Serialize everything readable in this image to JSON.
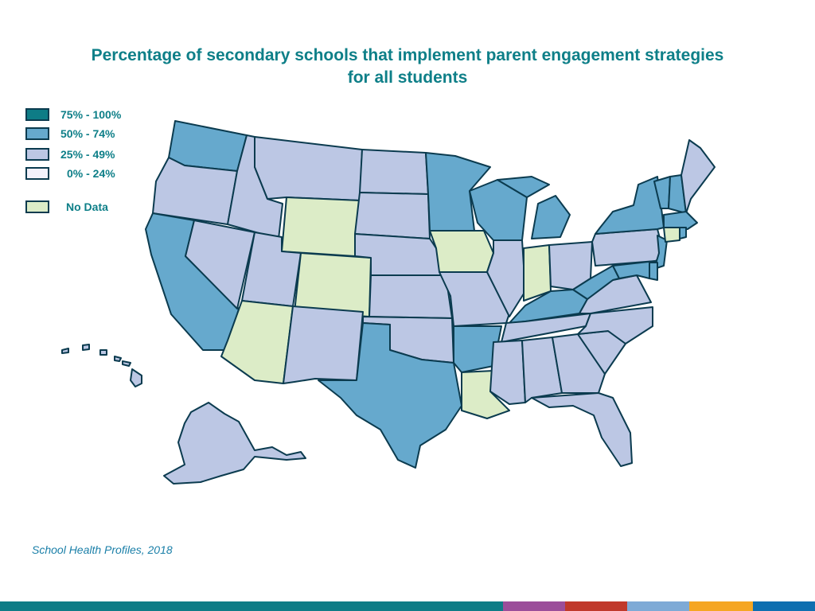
{
  "title": {
    "line1": "Percentage of secondary schools that implement parent engagement strategies",
    "line2": "for all students"
  },
  "legend": [
    {
      "label": "75% - 100%",
      "color": "#0e7c86"
    },
    {
      "label": "50% - 74%",
      "color": "#66a9cd"
    },
    {
      "label": "25% - 49%",
      "color": "#bcc7e4"
    },
    {
      "label": "0% - 24%",
      "color": "#f3f1fb"
    },
    {
      "label": "No Data",
      "color": "#dcecc7"
    }
  ],
  "source": "School Health Profiles, 2018",
  "colors": {
    "title": "#0e7f88",
    "border": "#0b3b4f",
    "source": "#1a7fa8"
  },
  "bottom_bar": [
    "#0e7c86",
    "#9b4e9a",
    "#c0392b",
    "#7eaad6",
    "#f5a623",
    "#0e6fb0"
  ],
  "chart_data": {
    "type": "choropleth",
    "categories": {
      "50% - 74%": [
        "WA",
        "CA",
        "MN",
        "WI",
        "MI",
        "NY",
        "VT",
        "NH",
        "MA",
        "RI",
        "NJ",
        "WV",
        "KY",
        "TX",
        "AR",
        "MD",
        "DE"
      ],
      "25% - 49%": [
        "OR",
        "ID",
        "MT",
        "NV",
        "UT",
        "NM",
        "ND",
        "SD",
        "NE",
        "KS",
        "OK",
        "MO",
        "IL",
        "OH",
        "PA",
        "VA",
        "NC",
        "SC",
        "GA",
        "FL",
        "AL",
        "MS",
        "TN",
        "ME",
        "AK",
        "HI"
      ],
      "No Data": [
        "WY",
        "CO",
        "AZ",
        "IA",
        "IN",
        "LA",
        "CT"
      ]
    }
  }
}
